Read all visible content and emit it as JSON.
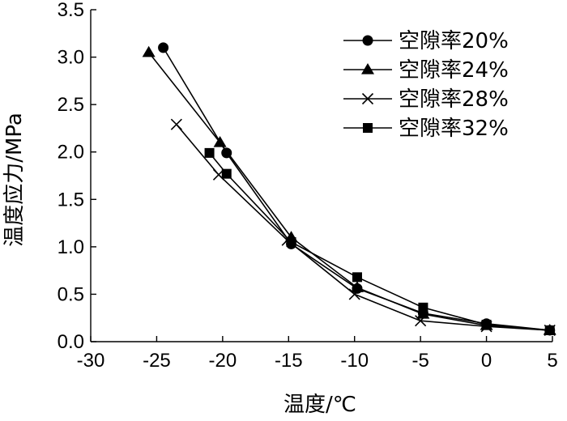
{
  "chart_data": {
    "type": "line",
    "xlabel": "温度/℃",
    "ylabel": "温度应力/MPa",
    "xlim": [
      -30,
      5
    ],
    "ylim": [
      0,
      3.5
    ],
    "xticks": [
      -30,
      -25,
      -20,
      -15,
      -10,
      -5,
      0,
      5
    ],
    "yticks": [
      0.0,
      0.5,
      1.0,
      1.5,
      2.0,
      2.5,
      3.0,
      3.5
    ],
    "ytick_labels": [
      "0.0",
      "0.5",
      "1.0",
      "1.5",
      "2.0",
      "2.5",
      "3.0",
      "3.5"
    ],
    "grid": false,
    "legend_position": "top-right",
    "series": [
      {
        "name": "空隙率20%",
        "marker": "circle",
        "x": [
          -24.5,
          -19.7,
          -14.8,
          -9.8,
          -4.8,
          0.0,
          4.8
        ],
        "y": [
          3.1,
          1.99,
          1.03,
          0.56,
          0.3,
          0.19,
          0.12
        ]
      },
      {
        "name": "空隙率24%",
        "marker": "triangle",
        "x": [
          -25.6,
          -20.2,
          -14.8,
          -9.8,
          -4.8,
          0.0,
          4.8
        ],
        "y": [
          3.05,
          2.1,
          1.1,
          0.57,
          0.29,
          0.17,
          0.12
        ]
      },
      {
        "name": "空隙率28%",
        "marker": "x",
        "x": [
          -23.5,
          -20.3,
          -15.1,
          -10.0,
          -5.0,
          0.0,
          4.8
        ],
        "y": [
          2.29,
          1.76,
          1.07,
          0.5,
          0.22,
          0.16,
          0.12
        ]
      },
      {
        "name": "空隙率32%",
        "marker": "square",
        "x": [
          -21.0,
          -19.7,
          -14.8,
          -9.8,
          -4.8,
          0.0,
          4.8
        ],
        "y": [
          1.99,
          1.77,
          1.05,
          0.68,
          0.36,
          0.18,
          0.12
        ]
      }
    ]
  }
}
